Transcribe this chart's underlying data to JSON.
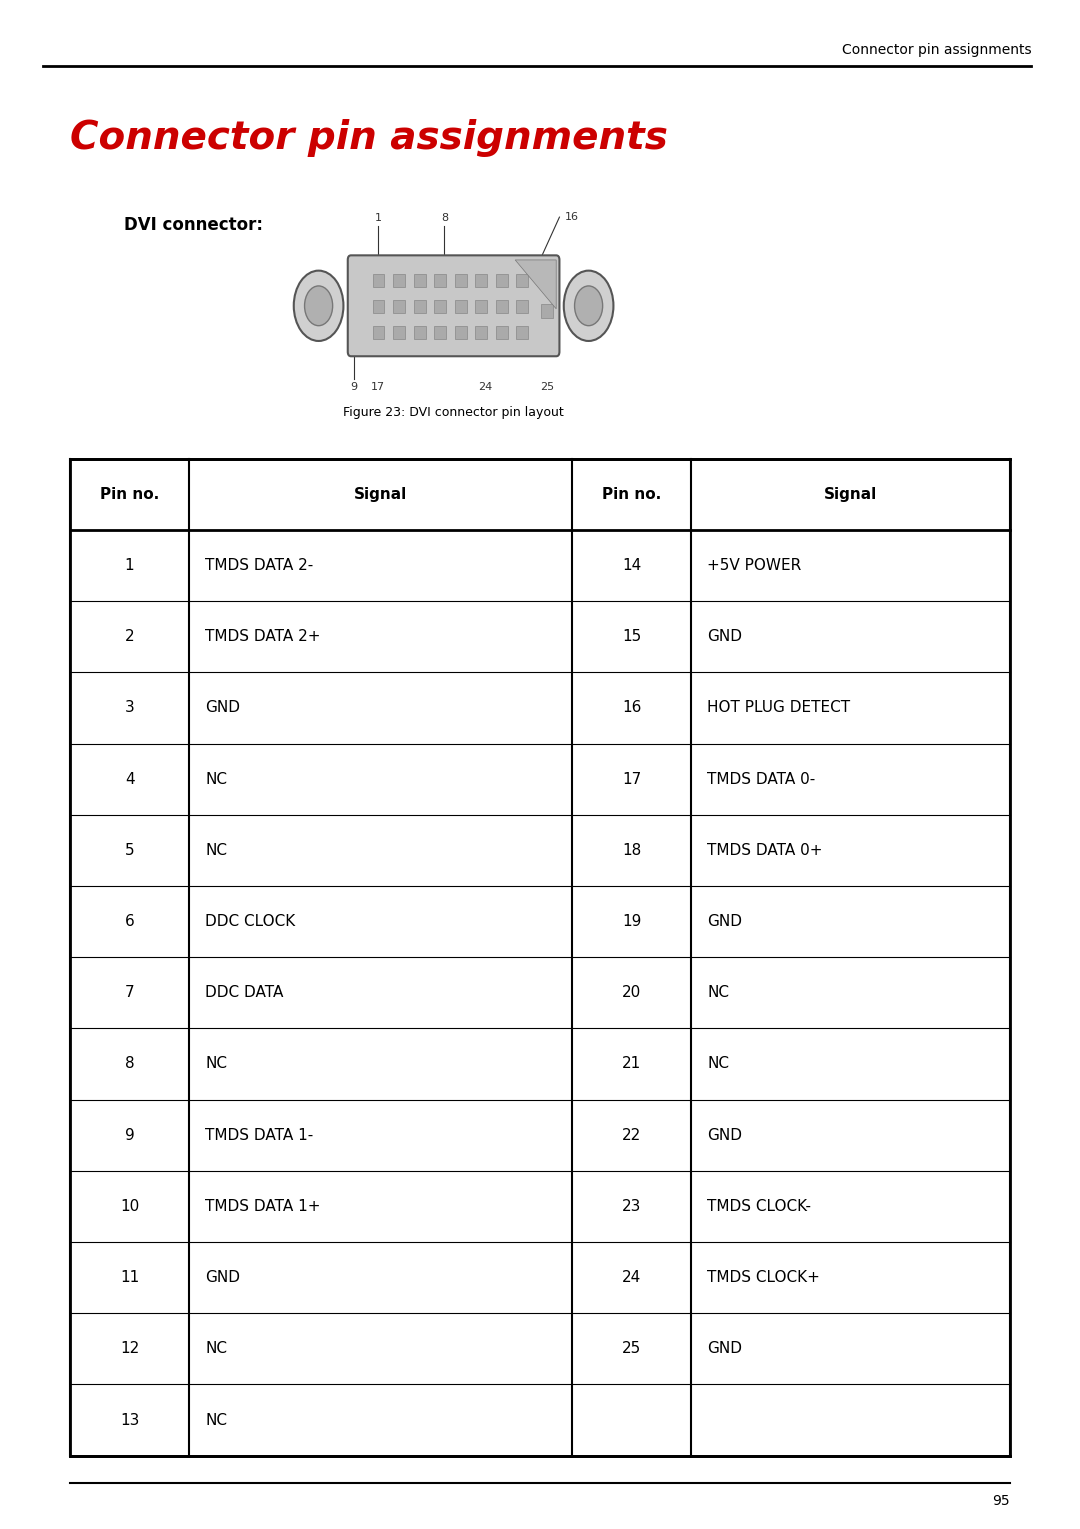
{
  "page_header": "Connector pin assignments",
  "main_title": "Connector pin assignments",
  "main_title_color": "#cc0000",
  "section_label": "DVI connector:",
  "figure_caption": "Figure 23: DVI connector pin layout",
  "table_headers": [
    "Pin no.",
    "Signal",
    "Pin no.",
    "Signal"
  ],
  "table_data": [
    [
      "1",
      "TMDS DATA 2-",
      "14",
      "+5V POWER"
    ],
    [
      "2",
      "TMDS DATA 2+",
      "15",
      "GND"
    ],
    [
      "3",
      "GND",
      "16",
      "HOT PLUG DETECT"
    ],
    [
      "4",
      "NC",
      "17",
      "TMDS DATA 0-"
    ],
    [
      "5",
      "NC",
      "18",
      "TMDS DATA 0+"
    ],
    [
      "6",
      "DDC CLOCK",
      "19",
      "GND"
    ],
    [
      "7",
      "DDC DATA",
      "20",
      "NC"
    ],
    [
      "8",
      "NC",
      "21",
      "NC"
    ],
    [
      "9",
      "TMDS DATA 1-",
      "22",
      "GND"
    ],
    [
      "10",
      "TMDS DATA 1+",
      "23",
      "TMDS CLOCK-"
    ],
    [
      "11",
      "GND",
      "24",
      "TMDS CLOCK+"
    ],
    [
      "12",
      "NC",
      "25",
      "GND"
    ],
    [
      "13",
      "NC",
      "",
      ""
    ]
  ],
  "page_number": "95",
  "bg_color": "#ffffff",
  "text_color": "#000000",
  "table_border_color": "#000000"
}
